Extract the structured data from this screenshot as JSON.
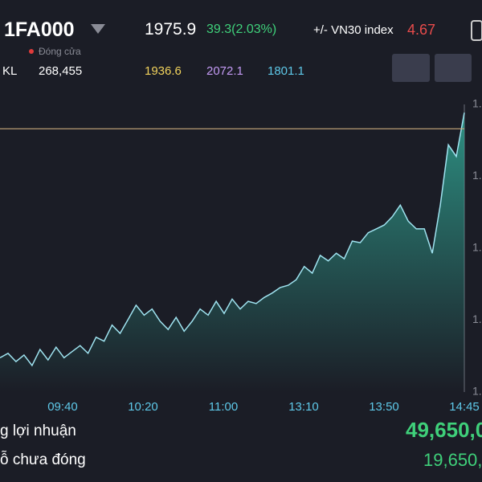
{
  "header": {
    "symbol": "1FA000",
    "price": "1975.9",
    "change": "39.3(2.03%)",
    "index_label": "+/- VN30 index",
    "index_value": "4.67",
    "status": "Đóng cửa",
    "volume_label": "KL",
    "volume": "268,455",
    "ref": "1936.6",
    "ceiling": "2072.1",
    "floor": "1801.1"
  },
  "chart": {
    "type": "area",
    "line_color": "#9fe3f0",
    "fill_color": "#2f9c8c",
    "reference_line": 1977.6,
    "reference_color": "#c9a77a",
    "ylim": [
      1930,
      1982
    ],
    "y_axis_labels": [
      "1.",
      "1.",
      "1.",
      "1.",
      "1."
    ],
    "x_labels": [
      "09:40",
      "10:20",
      "11:00",
      "13:10",
      "13:50",
      "14:45"
    ],
    "values": [
      1936.2,
      1937.0,
      1935.5,
      1936.7,
      1934.8,
      1937.7,
      1935.8,
      1938.1,
      1936.2,
      1937.3,
      1938.4,
      1937.0,
      1939.9,
      1939.2,
      1942.1,
      1940.6,
      1943.1,
      1945.7,
      1943.9,
      1945.0,
      1942.8,
      1941.3,
      1943.5,
      1941.0,
      1942.8,
      1945.0,
      1943.9,
      1946.4,
      1944.2,
      1946.8,
      1945.0,
      1946.4,
      1946.0,
      1947.1,
      1947.9,
      1948.9,
      1949.3,
      1950.3,
      1952.7,
      1951.5,
      1954.7,
      1953.7,
      1955.1,
      1954.1,
      1957.3,
      1957.0,
      1958.8,
      1959.5,
      1960.2,
      1961.7,
      1963.8,
      1960.9,
      1959.5,
      1959.5,
      1955.1,
      1963.8,
      1974.7,
      1972.6,
      1980.5
    ]
  },
  "summary": {
    "rows": [
      [
        "g lợi nhuận",
        "49,650,0"
      ],
      [
        "ỗ chưa đóng",
        "19,650,"
      ]
    ]
  }
}
